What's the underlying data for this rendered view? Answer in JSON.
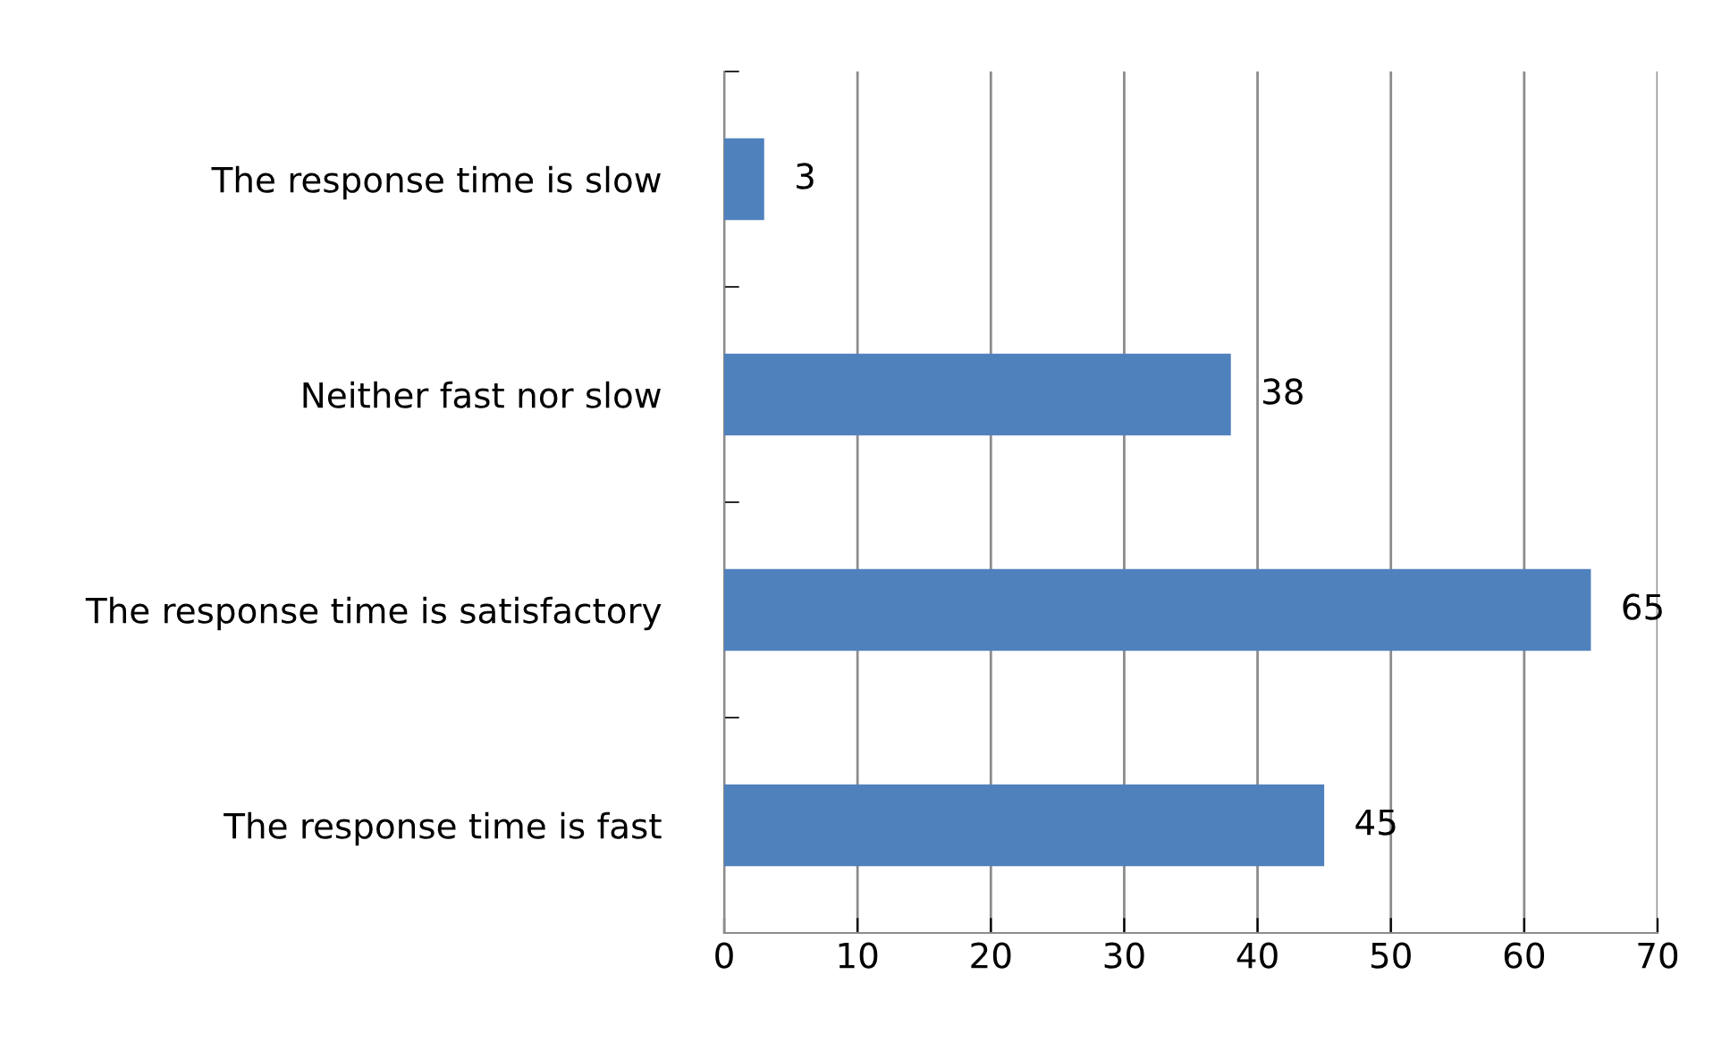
{
  "chart_data": {
    "type": "bar",
    "orientation": "horizontal",
    "categories": [
      "The response time is slow",
      "Neither fast nor slow",
      "The response time is satisfactory",
      "The response time is fast"
    ],
    "values": [
      3,
      38,
      65,
      45
    ],
    "color": "#4f81bd",
    "xlim": [
      0,
      70
    ],
    "xticks": [
      0,
      10,
      20,
      30,
      40,
      50,
      60,
      70
    ],
    "grid": "x",
    "data_labels": true
  }
}
